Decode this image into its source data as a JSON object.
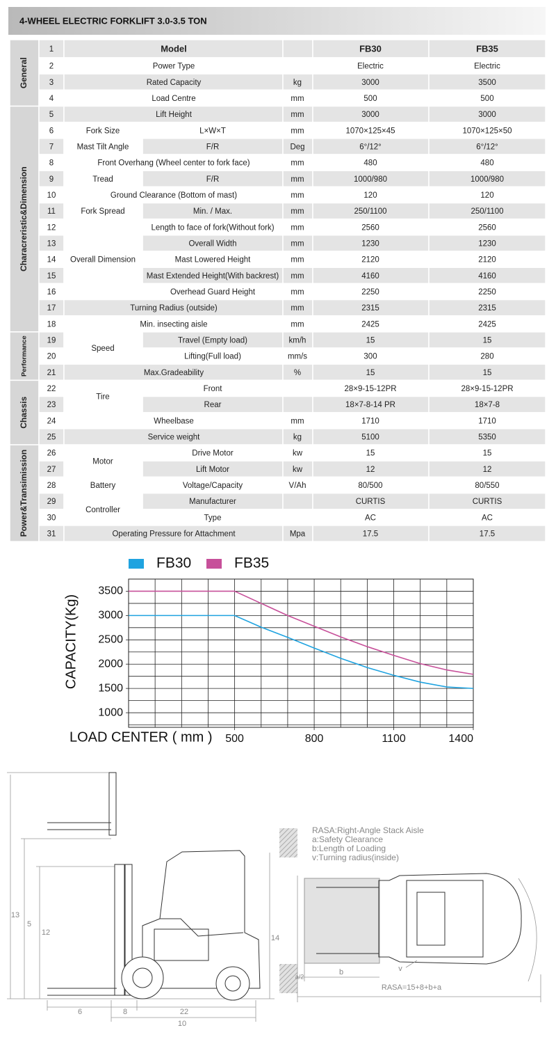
{
  "header": {
    "title": "4-WHEEL ELECTRIC FORKLIFT 3.0-3.5 TON"
  },
  "table": {
    "sections": [
      {
        "name": "General",
        "items": [
          {
            "no": "1",
            "label": "Model",
            "values": [
              "FB30",
              "FB35"
            ]
          },
          {
            "no": "2",
            "label": "Power Type",
            "values": [
              "Electric",
              "Electric"
            ]
          },
          {
            "no": "3",
            "label": "Rated Capacity",
            "unit": "kg",
            "values": [
              "3000",
              "3500"
            ]
          },
          {
            "no": "4",
            "label": "Load Centre",
            "unit": "mm",
            "values": [
              "500",
              "500"
            ]
          }
        ]
      },
      {
        "name": "Characreristic&Dimension",
        "items": [
          {
            "no": "5",
            "label": "Lift Height",
            "unit": "mm",
            "values": [
              "3000",
              "3000"
            ]
          },
          {
            "group": "Fork Size",
            "rows": [
              {
                "no": "6",
                "label": "L×W×T",
                "unit": "mm",
                "values": [
                  "1070×125×45",
                  "1070×125×50"
                ]
              }
            ]
          },
          {
            "group": "Mast Tilt Angle",
            "rows": [
              {
                "no": "7",
                "label": "F/R",
                "unit": "Deg",
                "values": [
                  "6°/12°",
                  "6°/12°"
                ]
              }
            ]
          },
          {
            "no": "8",
            "label": "Front Overhang (Wheel center to fork face)",
            "unit": "mm",
            "values": [
              "480",
              "480"
            ]
          },
          {
            "group": "Tread",
            "rows": [
              {
                "no": "9",
                "label": "F/R",
                "unit": "mm",
                "values": [
                  "1000/980",
                  "1000/980"
                ]
              }
            ]
          },
          {
            "no": "10",
            "label": "Ground Clearance (Bottom of mast)",
            "unit": "mm",
            "values": [
              "120",
              "120"
            ]
          },
          {
            "group": "Fork Spread",
            "rows": [
              {
                "no": "11",
                "label": "Min. / Max.",
                "unit": "mm",
                "values": [
                  "250/1100",
                  "250/1100"
                ]
              }
            ]
          },
          {
            "group": "Overall Dimension",
            "rows": [
              {
                "no": "12",
                "label": "Length to face of fork(Without fork)",
                "unit": "mm",
                "values": [
                  "2560",
                  "2560"
                ]
              },
              {
                "no": "13",
                "label": "Overall Width",
                "unit": "mm",
                "values": [
                  "1230",
                  "1230"
                ]
              },
              {
                "no": "14",
                "label": "Mast Lowered Height",
                "unit": "mm",
                "values": [
                  "2120",
                  "2120"
                ]
              },
              {
                "no": "15",
                "label": "Mast Extended Height(With backrest)",
                "unit": "mm",
                "values": [
                  "4160",
                  "4160"
                ]
              },
              {
                "no": "16",
                "label": "Overhead Guard Height",
                "unit": "mm",
                "values": [
                  "2250",
                  "2250"
                ]
              }
            ]
          },
          {
            "no": "17",
            "label": "Turning Radius (outside)",
            "unit": "mm",
            "values": [
              "2315",
              "2315"
            ]
          },
          {
            "no": "18",
            "label": "Min. insecting aisle",
            "unit": "mm",
            "values": [
              "2425",
              "2425"
            ]
          }
        ]
      },
      {
        "name": "Performance",
        "items": [
          {
            "group": "Speed",
            "rows": [
              {
                "no": "19",
                "label": "Travel (Empty load)",
                "unit": "km/h",
                "values": [
                  "15",
                  "15"
                ]
              },
              {
                "no": "20",
                "label": "Lifting(Full load)",
                "unit": "mm/s",
                "values": [
                  "300",
                  "280"
                ]
              }
            ]
          },
          {
            "no": "21",
            "label": "Max.Gradeability",
            "unit": "%",
            "values": [
              "15",
              "15"
            ]
          }
        ]
      },
      {
        "name": "Chassis",
        "items": [
          {
            "group": "Tire",
            "rows": [
              {
                "no": "22",
                "label": "Front",
                "values": [
                  "28×9-15-12PR",
                  "28×9-15-12PR"
                ]
              },
              {
                "no": "23",
                "label": "Rear",
                "values": [
                  "18×7-8-14 PR",
                  "18×7-8"
                ]
              }
            ]
          },
          {
            "no": "24",
            "label": "Wheelbase",
            "unit": "mm",
            "values": [
              "1710",
              "1710"
            ]
          },
          {
            "no": "25",
            "label": "Service weight",
            "unit": "kg",
            "values": [
              "5100",
              "5350"
            ]
          }
        ]
      },
      {
        "name": "Power&Transimission",
        "items": [
          {
            "group": "Motor",
            "rows": [
              {
                "no": "26",
                "label": "Drive Motor",
                "unit": "kw",
                "values": [
                  "15",
                  "15"
                ]
              },
              {
                "no": "27",
                "label": "Lift Motor",
                "unit": "kw",
                "values": [
                  "12",
                  "12"
                ]
              }
            ]
          },
          {
            "group": "Battery",
            "rows": [
              {
                "no": "28",
                "label": "Voltage/Capacity",
                "unit": "V/Ah",
                "values": [
                  "80/500",
                  "80/550"
                ]
              }
            ]
          },
          {
            "group": "Controller",
            "rows": [
              {
                "no": "29",
                "label": "Manufacturer",
                "values": [
                  "CURTIS",
                  "CURTIS"
                ]
              },
              {
                "no": "30",
                "label": "Type",
                "values": [
                  "AC",
                  "AC"
                ]
              }
            ]
          },
          {
            "no": "31",
            "label": "Operating Pressure for Attachment",
            "unit": "Mpa",
            "values": [
              "17.5",
              "17.5"
            ]
          }
        ]
      }
    ]
  },
  "chart_data": {
    "type": "line",
    "xlabel": "LOAD CENTER ( mm )",
    "ylabel": "CAPACITY(Kg)",
    "x": [
      100,
      500,
      600,
      700,
      800,
      900,
      1000,
      1100,
      1200,
      1300,
      1400
    ],
    "series": [
      {
        "name": "FB30",
        "color": "#1fa3e0",
        "values": [
          3000,
          3000,
          2760,
          2550,
          2330,
          2120,
          1930,
          1770,
          1630,
          1530,
          1500
        ]
      },
      {
        "name": "FB35",
        "color": "#c7509a",
        "values": [
          3500,
          3500,
          3250,
          3000,
          2780,
          2560,
          2360,
          2180,
          2010,
          1880,
          1790
        ]
      }
    ],
    "xlim": [
      100,
      1400
    ],
    "ylim": [
      700,
      3750
    ],
    "xticks": [
      500,
      800,
      1100,
      1400
    ],
    "yticks": [
      1000,
      1500,
      2000,
      2500,
      3000,
      3500
    ],
    "xgrid": [
      100,
      200,
      300,
      400,
      500,
      600,
      700,
      800,
      900,
      1000,
      1100,
      1200,
      1300,
      1400
    ],
    "ygrid": [
      750,
      1000,
      1250,
      1500,
      1750,
      2000,
      2250,
      2500,
      2750,
      3000,
      3250,
      3500,
      3750
    ],
    "legend": "top"
  },
  "diagram": {
    "legend": [
      "RASA:Right-Angle Stack Aisle",
      "a:Safety Clearance",
      "b:Length of Loading",
      "v:Turning radius(inside)"
    ],
    "dims": [
      "13",
      "5",
      "12",
      "14",
      "6",
      "8",
      "22",
      "10",
      "a/2",
      "b",
      "v",
      "RASA=15+8+b+a"
    ]
  }
}
